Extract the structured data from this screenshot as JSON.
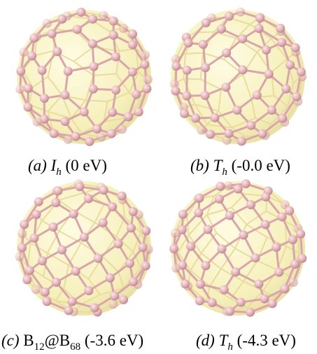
{
  "panels": [
    {
      "label": "(a)",
      "symbol": "I",
      "subscript": "h",
      "energy": "(0 eV)"
    },
    {
      "label": "(b)",
      "symbol": "T",
      "subscript": "h",
      "energy": "(-0.0 eV)"
    },
    {
      "label": "(c)",
      "formula": [
        "B",
        "12",
        "@B",
        "68"
      ],
      "energy": "(-3.6 eV)"
    },
    {
      "label": "(d)",
      "symbol": "T",
      "subscript": "h",
      "energy": "(-4.3 eV)"
    }
  ]
}
